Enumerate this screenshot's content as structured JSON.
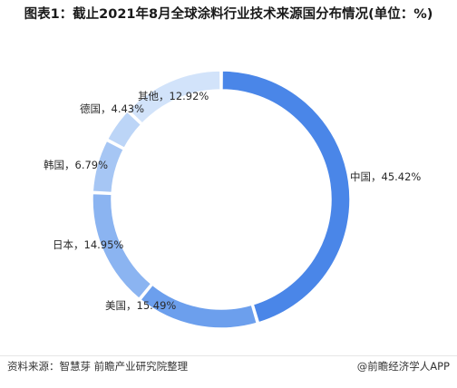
{
  "title": "图表1：截止2021年8月全球涂料行业技术来源国分布情况(单位：%)",
  "source": "资料来源：智慧芽 前瞻产业研究院整理",
  "brand": "@前瞻经济学人APP",
  "chart_data": {
    "type": "pie",
    "variant": "donut",
    "title": "图表1：截止2021年8月全球涂料行业技术来源国分布情况(单位：%)",
    "unit": "%",
    "start_angle_deg": 0,
    "direction": "clockwise",
    "slices": [
      {
        "label": "中国",
        "value": 45.42,
        "text": "中国，45.42%",
        "color": "#4a86e8"
      },
      {
        "label": "美国",
        "value": 15.49,
        "text": "美国，15.49%",
        "color": "#6c9fed"
      },
      {
        "label": "日本",
        "value": 14.95,
        "text": "日本，14.95%",
        "color": "#8bb4f1"
      },
      {
        "label": "韩国",
        "value": 6.79,
        "text": "韩国，6.79%",
        "color": "#a6c6f4"
      },
      {
        "label": "德国",
        "value": 4.43,
        "text": "德国，4.43%",
        "color": "#bcd5f7"
      },
      {
        "label": "其他",
        "value": 12.92,
        "text": "其他，12.92%",
        "color": "#d2e3fa"
      }
    ]
  }
}
